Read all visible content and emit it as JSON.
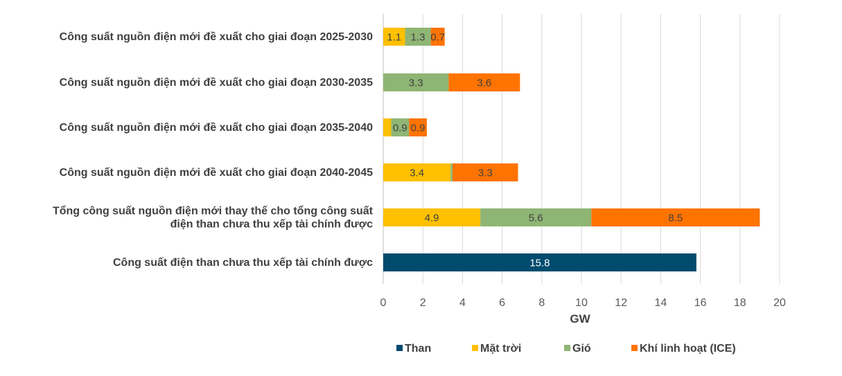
{
  "chart_data": {
    "type": "bar",
    "orientation": "horizontal",
    "stacked": true,
    "categories": [
      [
        "Công suất nguồn điện mới đề xuất cho giai đoạn 2025-2030"
      ],
      [
        "Công suất nguồn điện mới đề xuất cho giai đoạn 2030-2035"
      ],
      [
        "Công suất nguồn điện mới đề xuất cho giai đoạn 2035-2040"
      ],
      [
        "Công suất nguồn điện mới đề xuất cho giai đoạn 2040-2045"
      ],
      [
        "Tổng công suất nguồn điện mới thay thế cho tổng công suất",
        "điện than chưa thu xếp tài chính được"
      ],
      [
        "Công suất điện than chưa thu xếp tài chính được"
      ]
    ],
    "series": [
      {
        "name": "Than",
        "color": "#004B6E",
        "label_color": "#ffffff",
        "values": [
          0,
          0,
          0,
          0,
          0,
          15.8
        ],
        "labels": [
          "",
          "",
          "",
          "",
          "",
          "15.8"
        ]
      },
      {
        "name": "Mặt trời",
        "color": "#FFC000",
        "label_color": "#404040",
        "values": [
          1.1,
          0,
          0.4,
          3.4,
          4.9,
          0
        ],
        "labels": [
          "1.1",
          "",
          "",
          "3.4",
          "4.9",
          ""
        ]
      },
      {
        "name": "Gió",
        "color": "#8FB574",
        "label_color": "#404040",
        "values": [
          1.3,
          3.3,
          0.9,
          0.1,
          5.6,
          0
        ],
        "labels": [
          "1.3",
          "3.3",
          "0.9",
          "",
          "5.6",
          ""
        ]
      },
      {
        "name": "Khí linh hoạt (ICE)",
        "color": "#FF7301",
        "label_color": "#404040",
        "values": [
          0.7,
          3.6,
          0.9,
          3.3,
          8.5,
          0
        ],
        "labels": [
          "0.7",
          "3.6",
          "0.9",
          "3.3",
          "8.5",
          ""
        ]
      }
    ],
    "xlim": [
      0,
      20
    ],
    "xticks": [
      "0",
      "2",
      "4",
      "6",
      "8",
      "10",
      "12",
      "14",
      "16",
      "18",
      "20"
    ],
    "xlabel": "GW",
    "ylabel": "",
    "title": "",
    "grid": "vertical",
    "legend_position": "bottom"
  },
  "colors": {
    "gridline": "#D9D9D9",
    "axis_line": "#BFBFBF"
  }
}
